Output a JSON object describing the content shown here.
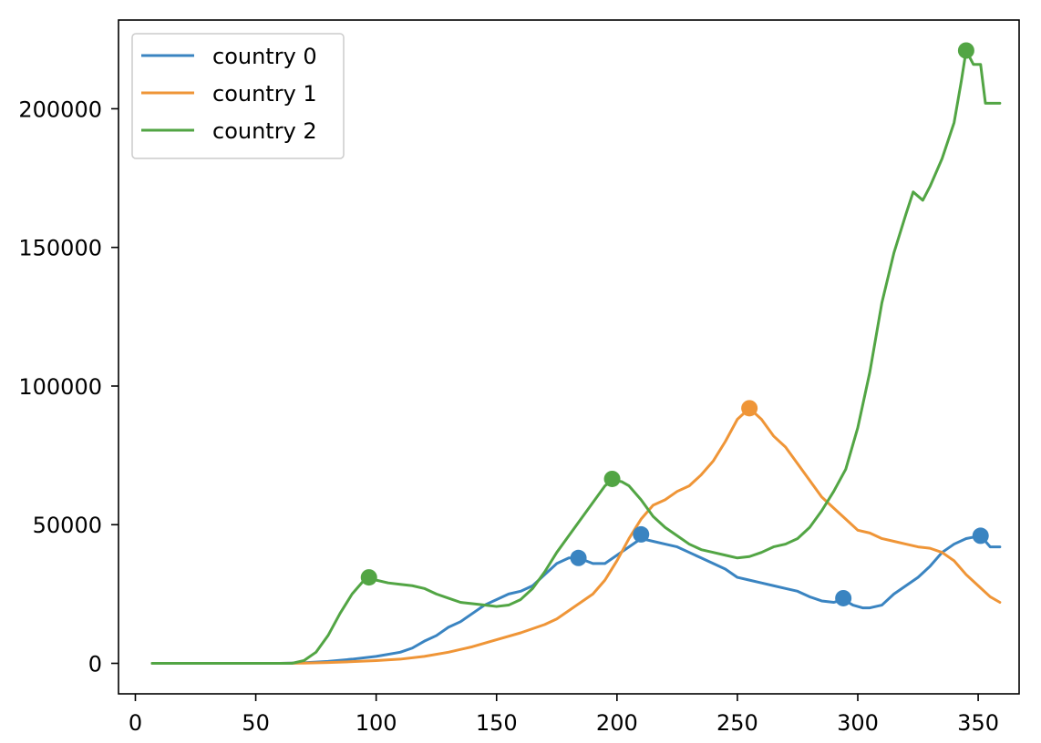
{
  "chart_data": {
    "type": "line",
    "title": "",
    "xlabel": "",
    "ylabel": "",
    "xlim": [
      -7,
      367
    ],
    "ylim": [
      -11000,
      232000
    ],
    "xticks": [
      0,
      50,
      100,
      150,
      200,
      250,
      300,
      350
    ],
    "yticks": [
      0,
      50000,
      100000,
      150000,
      200000
    ],
    "grid": false,
    "legend": {
      "placement": "top-left"
    },
    "series": [
      {
        "name": "country 0",
        "color": "#3a84c1",
        "points": [
          [
            7,
            0
          ],
          [
            60,
            0
          ],
          [
            70,
            200
          ],
          [
            80,
            700
          ],
          [
            90,
            1500
          ],
          [
            100,
            2500
          ],
          [
            110,
            4000
          ],
          [
            115,
            5500
          ],
          [
            120,
            8000
          ],
          [
            125,
            10000
          ],
          [
            130,
            13000
          ],
          [
            135,
            15000
          ],
          [
            140,
            18000
          ],
          [
            145,
            21000
          ],
          [
            150,
            23000
          ],
          [
            155,
            25000
          ],
          [
            160,
            26000
          ],
          [
            165,
            28000
          ],
          [
            170,
            32000
          ],
          [
            175,
            36000
          ],
          [
            180,
            38000
          ],
          [
            184,
            38000
          ],
          [
            190,
            36000
          ],
          [
            195,
            36000
          ],
          [
            200,
            39000
          ],
          [
            205,
            42000
          ],
          [
            210,
            45000
          ],
          [
            215,
            44000
          ],
          [
            220,
            43000
          ],
          [
            225,
            42000
          ],
          [
            230,
            40000
          ],
          [
            235,
            38000
          ],
          [
            240,
            36000
          ],
          [
            245,
            34000
          ],
          [
            250,
            31000
          ],
          [
            255,
            30000
          ],
          [
            260,
            29000
          ],
          [
            265,
            28000
          ],
          [
            270,
            27000
          ],
          [
            275,
            26000
          ],
          [
            280,
            24000
          ],
          [
            285,
            22500
          ],
          [
            290,
            22000
          ],
          [
            294,
            23000
          ],
          [
            298,
            21000
          ],
          [
            302,
            20000
          ],
          [
            305,
            20000
          ],
          [
            310,
            21000
          ],
          [
            315,
            25000
          ],
          [
            320,
            28000
          ],
          [
            325,
            31000
          ],
          [
            330,
            35000
          ],
          [
            335,
            40000
          ],
          [
            340,
            43000
          ],
          [
            345,
            45000
          ],
          [
            351,
            46000
          ],
          [
            355,
            42000
          ],
          [
            359,
            42000
          ]
        ]
      },
      {
        "name": "country 1",
        "color": "#ef9537",
        "points": [
          [
            7,
            0
          ],
          [
            60,
            0
          ],
          [
            70,
            100
          ],
          [
            80,
            300
          ],
          [
            90,
            600
          ],
          [
            100,
            1000
          ],
          [
            110,
            1500
          ],
          [
            120,
            2500
          ],
          [
            130,
            4000
          ],
          [
            140,
            6000
          ],
          [
            150,
            8500
          ],
          [
            160,
            11000
          ],
          [
            170,
            14000
          ],
          [
            175,
            16000
          ],
          [
            180,
            19000
          ],
          [
            185,
            22000
          ],
          [
            190,
            25000
          ],
          [
            195,
            30000
          ],
          [
            200,
            37000
          ],
          [
            205,
            45000
          ],
          [
            210,
            52000
          ],
          [
            215,
            57000
          ],
          [
            220,
            59000
          ],
          [
            225,
            62000
          ],
          [
            230,
            64000
          ],
          [
            235,
            68000
          ],
          [
            240,
            73000
          ],
          [
            245,
            80000
          ],
          [
            250,
            88000
          ],
          [
            255,
            92000
          ],
          [
            260,
            88000
          ],
          [
            265,
            82000
          ],
          [
            270,
            78000
          ],
          [
            275,
            72000
          ],
          [
            280,
            66000
          ],
          [
            285,
            60000
          ],
          [
            290,
            56000
          ],
          [
            295,
            52000
          ],
          [
            300,
            48000
          ],
          [
            305,
            47000
          ],
          [
            310,
            45000
          ],
          [
            315,
            44000
          ],
          [
            320,
            43000
          ],
          [
            325,
            42000
          ],
          [
            330,
            41500
          ],
          [
            335,
            40000
          ],
          [
            340,
            37000
          ],
          [
            345,
            32000
          ],
          [
            350,
            28000
          ],
          [
            355,
            24000
          ],
          [
            359,
            22000
          ]
        ]
      },
      {
        "name": "country 2",
        "color": "#52a544",
        "points": [
          [
            7,
            0
          ],
          [
            65,
            0
          ],
          [
            70,
            1000
          ],
          [
            75,
            4000
          ],
          [
            80,
            10000
          ],
          [
            85,
            18000
          ],
          [
            90,
            25000
          ],
          [
            95,
            30000
          ],
          [
            97,
            31000
          ],
          [
            100,
            30000
          ],
          [
            105,
            29000
          ],
          [
            110,
            28500
          ],
          [
            115,
            28000
          ],
          [
            120,
            27000
          ],
          [
            125,
            25000
          ],
          [
            130,
            23500
          ],
          [
            135,
            22000
          ],
          [
            140,
            21500
          ],
          [
            145,
            21000
          ],
          [
            150,
            20500
          ],
          [
            155,
            21000
          ],
          [
            160,
            23000
          ],
          [
            165,
            27000
          ],
          [
            170,
            33000
          ],
          [
            175,
            40000
          ],
          [
            180,
            46000
          ],
          [
            185,
            52000
          ],
          [
            190,
            58000
          ],
          [
            195,
            64000
          ],
          [
            198,
            66000
          ],
          [
            202,
            65500
          ],
          [
            205,
            64000
          ],
          [
            210,
            59000
          ],
          [
            215,
            53000
          ],
          [
            220,
            49000
          ],
          [
            225,
            46000
          ],
          [
            230,
            43000
          ],
          [
            235,
            41000
          ],
          [
            240,
            40000
          ],
          [
            245,
            39000
          ],
          [
            250,
            38000
          ],
          [
            255,
            38500
          ],
          [
            260,
            40000
          ],
          [
            265,
            42000
          ],
          [
            270,
            43000
          ],
          [
            275,
            45000
          ],
          [
            280,
            49000
          ],
          [
            285,
            55000
          ],
          [
            290,
            62000
          ],
          [
            295,
            70000
          ],
          [
            300,
            85000
          ],
          [
            305,
            105000
          ],
          [
            310,
            130000
          ],
          [
            315,
            148000
          ],
          [
            320,
            162000
          ],
          [
            323,
            170000
          ],
          [
            327,
            167000
          ],
          [
            330,
            172000
          ],
          [
            335,
            182000
          ],
          [
            340,
            195000
          ],
          [
            343,
            210000
          ],
          [
            345,
            221000
          ],
          [
            348,
            216000
          ],
          [
            351,
            216000
          ],
          [
            353,
            202000
          ],
          [
            359,
            202000
          ]
        ]
      }
    ],
    "markers": [
      {
        "series": "country 0",
        "x": 184,
        "y": 38000
      },
      {
        "series": "country 0",
        "x": 210,
        "y": 46500
      },
      {
        "series": "country 0",
        "x": 294,
        "y": 23500
      },
      {
        "series": "country 0",
        "x": 351,
        "y": 46000
      },
      {
        "series": "country 1",
        "x": 255,
        "y": 92000
      },
      {
        "series": "country 2",
        "x": 97,
        "y": 31000
      },
      {
        "series": "country 2",
        "x": 198,
        "y": 66500
      },
      {
        "series": "country 2",
        "x": 345,
        "y": 221000
      }
    ]
  }
}
